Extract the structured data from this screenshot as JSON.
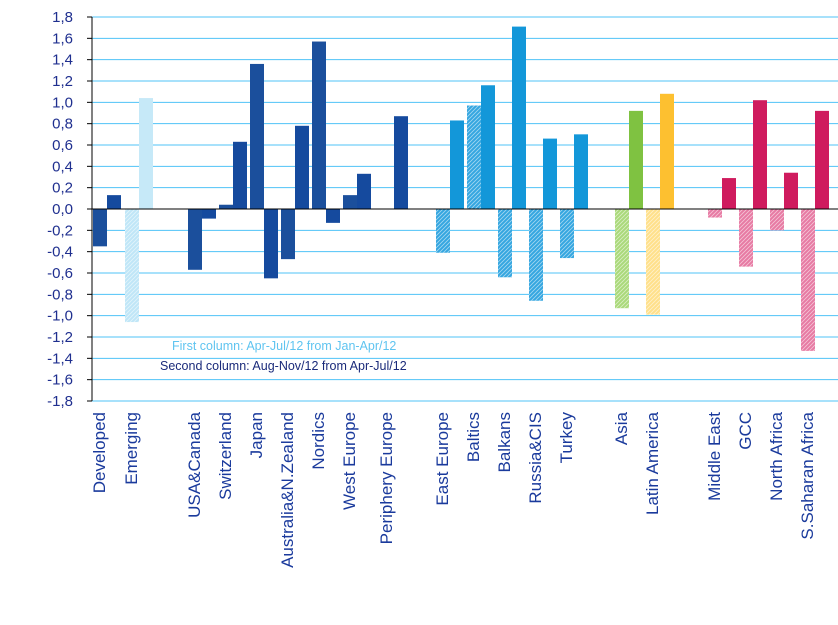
{
  "chart_data": {
    "type": "bar",
    "ylim": [
      -1.8,
      1.8
    ],
    "ytick_step": 0.2,
    "grid": true,
    "colors": {
      "gridline": "#4fc3f7",
      "axis": "#000000",
      "tick_text": "#1f2f8f",
      "category_text": "#1a3a9c",
      "Developed_first": "#1b4f9c",
      "Developed_second": "#154a9e",
      "Emerging_first": "#bfe6f7",
      "Emerging_second": "#c6e9f8",
      "Europe_first": "#34a6e0",
      "Europe_second": "#1397d9",
      "Asia_first": "#aad97a",
      "Asia_second": "#7fc241",
      "LatAm_first": "#ffe08a",
      "LatAm_second": "#fdc030",
      "MEA_first": "#e77aa3",
      "MEA_second": "#cf1b5e",
      "note_first": "#5fc4f0",
      "note_second": "#1a2a7a"
    },
    "categories": [
      {
        "label": "Developed",
        "group": "Developed",
        "first": -0.35,
        "second": 0.13
      },
      {
        "label": "Emerging",
        "group": "Emerging",
        "first": -1.06,
        "second": 1.04
      },
      {
        "label": "USA&Canada",
        "group": "Developed",
        "first": -0.57,
        "second": -0.09
      },
      {
        "label": "Switzerland",
        "group": "Developed",
        "first": 0.04,
        "second": 0.63
      },
      {
        "label": "Japan",
        "group": "Developed",
        "first": 1.36,
        "second": -0.65
      },
      {
        "label": "Australia&N.Zealand",
        "group": "Developed",
        "first": -0.47,
        "second": 0.78
      },
      {
        "label": "Nordics",
        "group": "Developed",
        "first": 1.57,
        "second": -0.13
      },
      {
        "label": "West Europe",
        "group": "Developed",
        "first": 0.13,
        "second": 0.33
      },
      {
        "label": "Periphery Europe",
        "group": "Developed",
        "first": 0.0,
        "second": 0.87
      },
      {
        "label": "East Europe",
        "group": "Europe",
        "first": -0.41,
        "second": 0.83
      },
      {
        "label": "Baltics",
        "group": "Europe",
        "first": 0.97,
        "second": 1.16
      },
      {
        "label": "Balkans",
        "group": "Europe",
        "first": -0.64,
        "second": 1.71
      },
      {
        "label": "Russia&CIS",
        "group": "Europe",
        "first": -0.86,
        "second": 0.66
      },
      {
        "label": "Turkey",
        "group": "Europe",
        "first": -0.46,
        "second": 0.7
      },
      {
        "label": "Asia",
        "group": "Asia",
        "first": -0.93,
        "second": 0.92
      },
      {
        "label": "Latin America",
        "group": "LatAm",
        "first": -0.99,
        "second": 1.08
      },
      {
        "label": "Middle East",
        "group": "MEA",
        "first": -0.08,
        "second": 0.29
      },
      {
        "label": "GCC",
        "group": "MEA",
        "first": -0.54,
        "second": 1.02
      },
      {
        "label": "North Africa",
        "group": "MEA",
        "first": -0.2,
        "second": 0.34
      },
      {
        "label": "S.Saharan Africa",
        "group": "MEA",
        "first": -1.33,
        "second": 0.92
      }
    ],
    "annotations": {
      "first_column": "First column: Apr-Jul/12 from Jan-Apr/12",
      "second_column": "Second column: Aug-Nov/12 from Apr-Jul/12"
    }
  }
}
